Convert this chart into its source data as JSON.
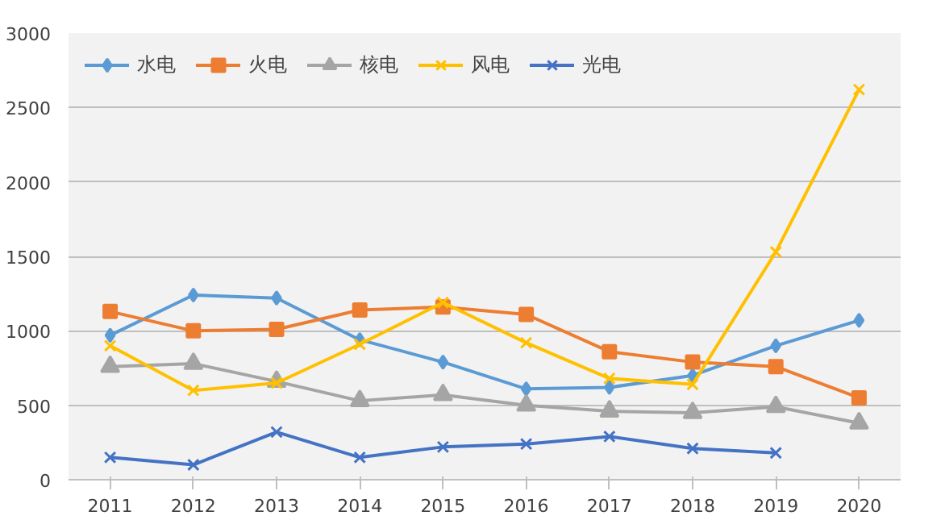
{
  "chart_data": {
    "type": "line",
    "categories": [
      "2011",
      "2012",
      "2013",
      "2014",
      "2015",
      "2016",
      "2017",
      "2018",
      "2019",
      "2020"
    ],
    "ylim": [
      0,
      3000
    ],
    "yticks": [
      0,
      500,
      1000,
      1500,
      2000,
      2500,
      3000
    ],
    "grid": "y",
    "legend": "top left",
    "series": [
      {
        "name": "水电",
        "color": "#5b9bd5",
        "marker": "diamond",
        "values": [
          970,
          1240,
          1220,
          940,
          790,
          610,
          620,
          700,
          900,
          1070
        ]
      },
      {
        "name": "火电",
        "color": "#ed7d31",
        "marker": "square",
        "values": [
          1130,
          1000,
          1010,
          1140,
          1160,
          1110,
          860,
          790,
          760,
          550
        ]
      },
      {
        "name": "核电",
        "color": "#a5a5a5",
        "marker": "triangle",
        "values": [
          760,
          780,
          660,
          530,
          570,
          500,
          460,
          450,
          490,
          380
        ]
      },
      {
        "name": "风电",
        "color": "#ffc000",
        "marker": "cross",
        "values": [
          900,
          600,
          650,
          910,
          1190,
          920,
          680,
          640,
          1530,
          2620
        ]
      },
      {
        "name": "光电",
        "color": "#4472c4",
        "marker": "cross",
        "values": [
          150,
          100,
          320,
          150,
          220,
          240,
          290,
          210,
          180,
          null
        ]
      }
    ]
  }
}
